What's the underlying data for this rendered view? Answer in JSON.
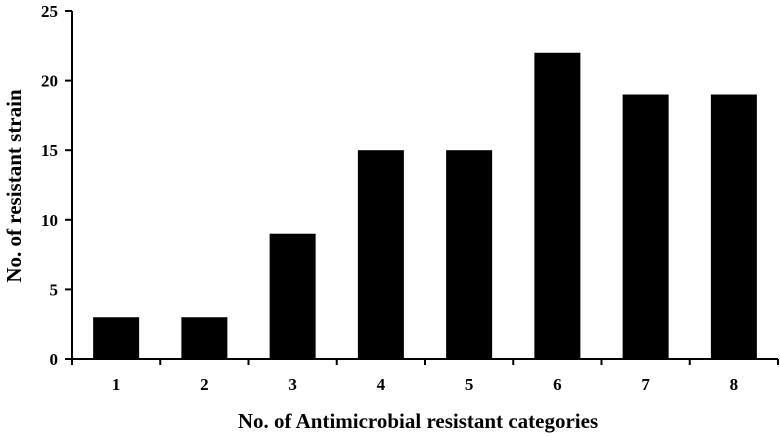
{
  "chart_data": {
    "type": "bar",
    "categories": [
      "1",
      "2",
      "3",
      "4",
      "5",
      "6",
      "7",
      "8"
    ],
    "values": [
      3,
      3,
      9,
      15,
      15,
      22,
      19,
      19
    ],
    "xlabel": "No. of Antimicrobial resistant categories",
    "ylabel": "No. of resistant strain",
    "ylim": [
      0,
      25
    ],
    "yticks": [
      "0",
      "5",
      "10",
      "15",
      "20",
      "25"
    ],
    "bar_color": "#000000",
    "grid": false,
    "legend": false
  }
}
